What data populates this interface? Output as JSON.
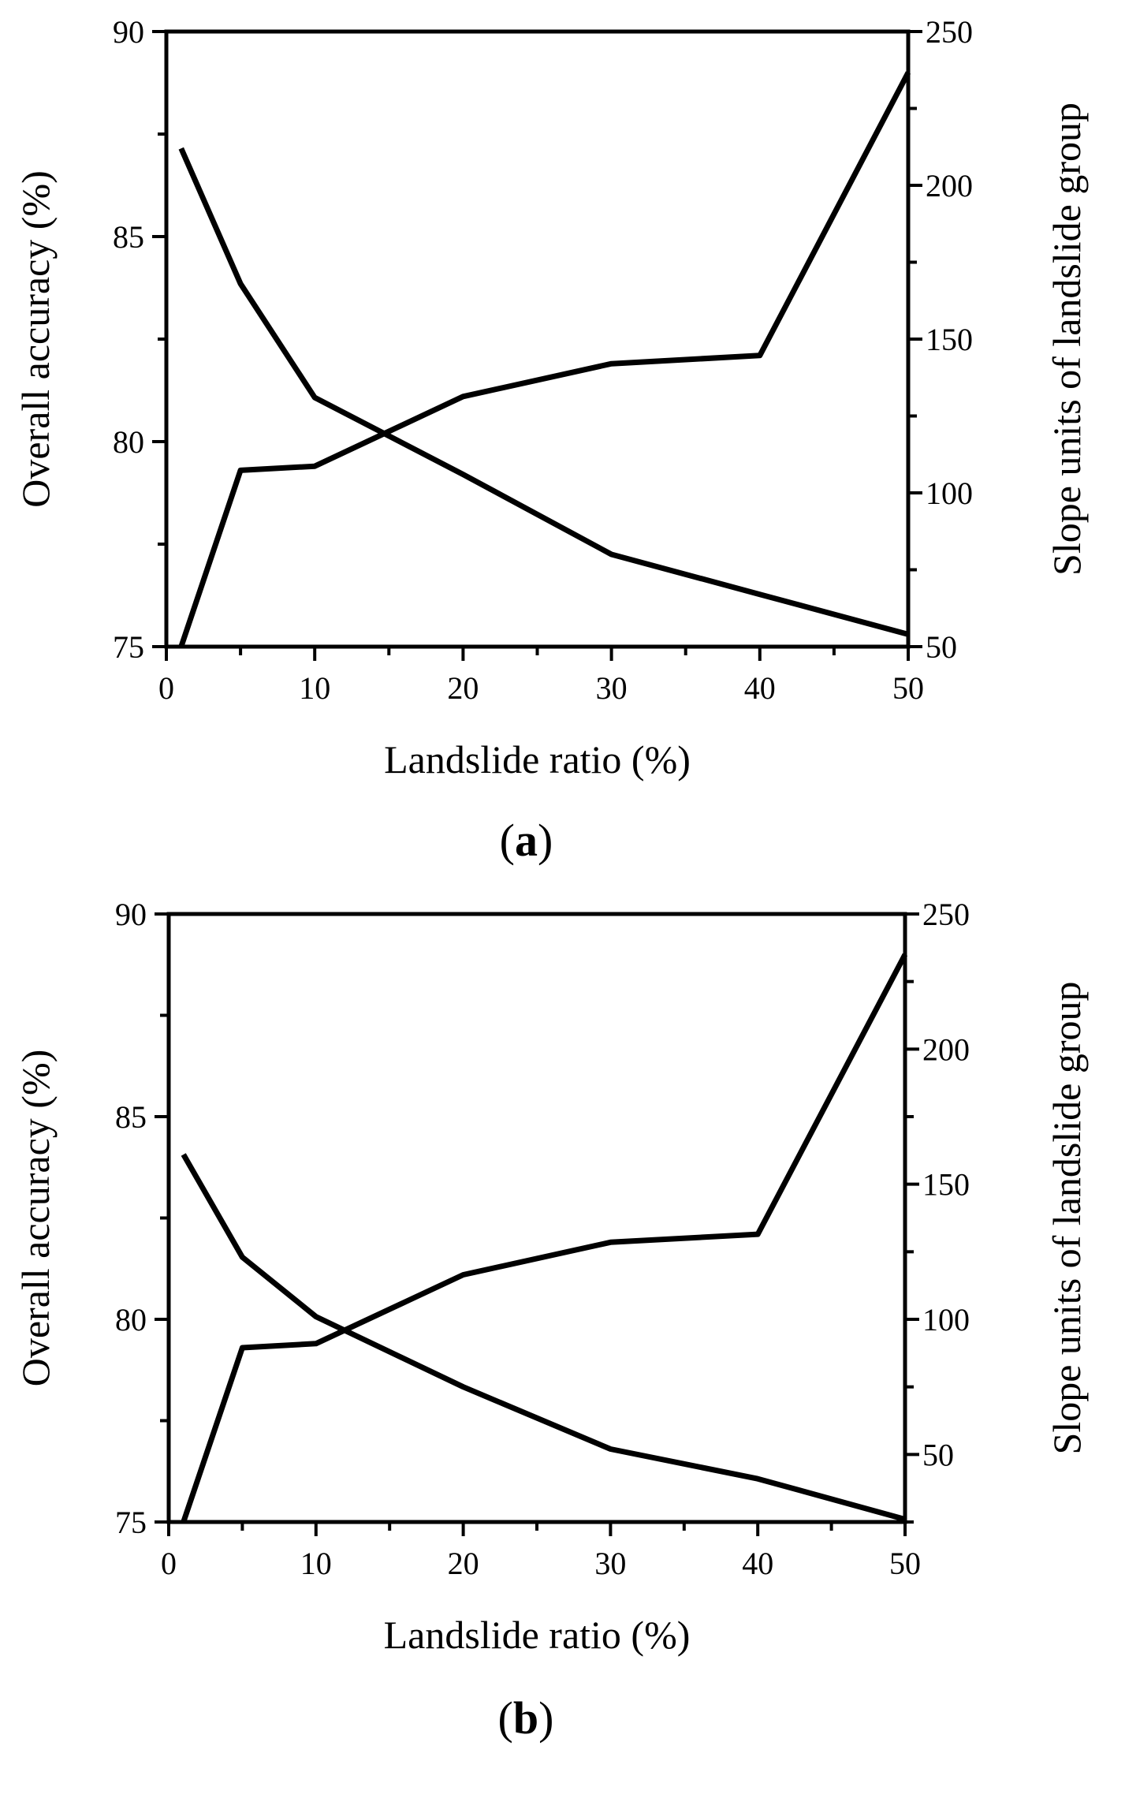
{
  "colors": {
    "line": "#000000",
    "background": "#ffffff"
  },
  "chart_data": [
    {
      "type": "line",
      "panel_label": "a",
      "xlabel": "Landslide ratio (%)",
      "ylabel_left": "Overall accuracy (%)",
      "ylabel_right": "Slope units of landslide group",
      "xlim": [
        0,
        50
      ],
      "ylim_left": [
        75,
        90
      ],
      "ylim_right": [
        50,
        250
      ],
      "xticks": [
        0,
        10,
        20,
        30,
        40,
        50
      ],
      "yticks_left": [
        75,
        80,
        85,
        90
      ],
      "yticks_right": [
        50,
        100,
        150,
        200,
        250
      ],
      "grid": false,
      "series": [
        {
          "name": "Overall accuracy",
          "axis": "left",
          "x": [
            1,
            5,
            10,
            20,
            30,
            40,
            50
          ],
          "values": [
            75.0,
            79.3,
            79.4,
            81.1,
            81.9,
            82.1,
            89.0
          ]
        },
        {
          "name": "Slope units of landslide group",
          "axis": "right",
          "x": [
            1,
            5,
            10,
            20,
            30,
            40,
            50
          ],
          "values": [
            212,
            168,
            131,
            106,
            80,
            67,
            54
          ]
        }
      ]
    },
    {
      "type": "line",
      "panel_label": "b",
      "xlabel": "Landslide ratio (%)",
      "ylabel_left": "Overall accuracy (%)",
      "ylabel_right": "Slope units of landslide group",
      "xlim": [
        0,
        50
      ],
      "ylim_left": [
        75,
        90
      ],
      "ylim_right": [
        25,
        250
      ],
      "xticks": [
        0,
        10,
        20,
        30,
        40,
        50
      ],
      "yticks_left": [
        75,
        80,
        85,
        90
      ],
      "yticks_right": [
        50,
        100,
        150,
        200,
        250
      ],
      "grid": false,
      "series": [
        {
          "name": "Overall accuracy",
          "axis": "left",
          "x": [
            1,
            5,
            10,
            20,
            30,
            40,
            50
          ],
          "values": [
            75.0,
            79.3,
            79.4,
            81.1,
            81.9,
            82.1,
            89.0
          ]
        },
        {
          "name": "Slope units of landslide group",
          "axis": "right",
          "x": [
            1,
            5,
            10,
            20,
            30,
            40,
            50
          ],
          "values": [
            161,
            123,
            101,
            75,
            52,
            41,
            26
          ]
        }
      ]
    }
  ]
}
